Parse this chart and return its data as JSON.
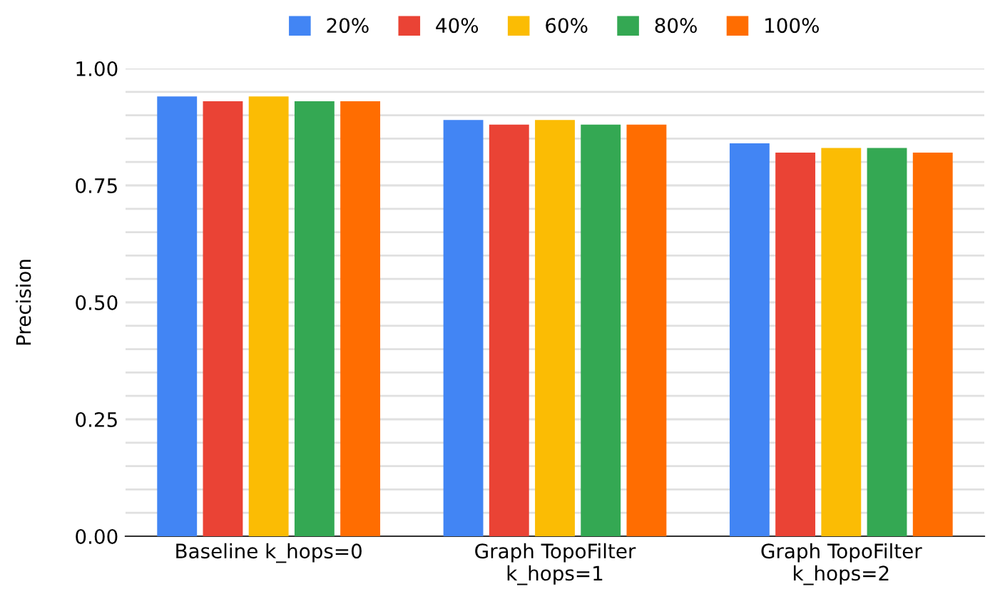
{
  "chart_data": {
    "type": "bar",
    "ylabel": "Precision",
    "categories": [
      "Baseline k_hops=0",
      "Graph TopoFilter\nk_hops=1",
      "Graph TopoFilter\nk_hops=2"
    ],
    "series": [
      {
        "name": "20%",
        "color": "#4285f4",
        "values": [
          0.94,
          0.89,
          0.84
        ]
      },
      {
        "name": "40%",
        "color": "#ea4335",
        "values": [
          0.93,
          0.88,
          0.82
        ]
      },
      {
        "name": "60%",
        "color": "#fbbc04",
        "values": [
          0.94,
          0.89,
          0.83
        ]
      },
      {
        "name": "80%",
        "color": "#34a853",
        "values": [
          0.93,
          0.88,
          0.83
        ]
      },
      {
        "name": "100%",
        "color": "#ff6d01",
        "values": [
          0.93,
          0.88,
          0.82
        ]
      }
    ],
    "ylim": [
      0,
      1
    ],
    "yticks": [
      {
        "value": 0,
        "label": "0.00"
      },
      {
        "value": 0.05,
        "label": null
      },
      {
        "value": 0.1,
        "label": null
      },
      {
        "value": 0.15,
        "label": null
      },
      {
        "value": 0.2,
        "label": null
      },
      {
        "value": 0.25,
        "label": "0.25"
      },
      {
        "value": 0.3,
        "label": null
      },
      {
        "value": 0.35,
        "label": null
      },
      {
        "value": 0.4,
        "label": null
      },
      {
        "value": 0.45,
        "label": null
      },
      {
        "value": 0.5,
        "label": "0.50"
      },
      {
        "value": 0.55,
        "label": null
      },
      {
        "value": 0.6,
        "label": null
      },
      {
        "value": 0.65,
        "label": null
      },
      {
        "value": 0.7,
        "label": null
      },
      {
        "value": 0.75,
        "label": "0.75"
      },
      {
        "value": 0.8,
        "label": null
      },
      {
        "value": 0.85,
        "label": null
      },
      {
        "value": 0.9,
        "label": null
      },
      {
        "value": 0.95,
        "label": null
      },
      {
        "value": 1,
        "label": "1.00"
      }
    ],
    "grid": "y",
    "legend": "top"
  }
}
